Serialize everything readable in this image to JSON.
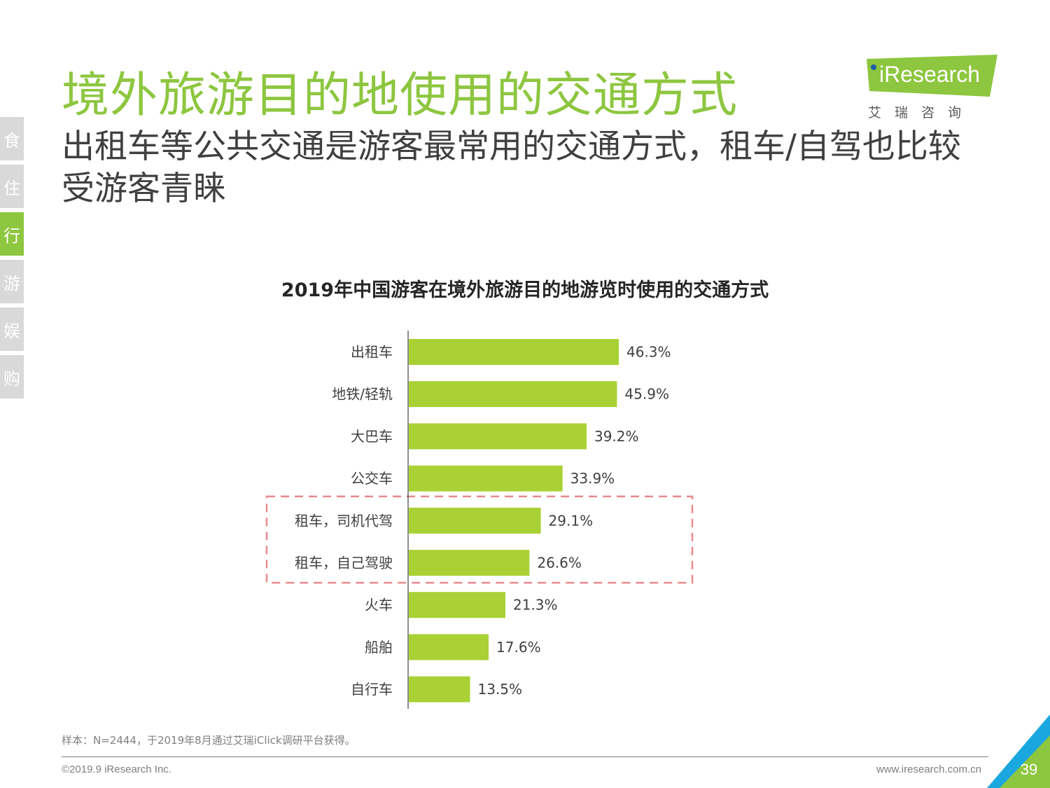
{
  "header": {
    "title": "境外旅游目的地使用的交通方式",
    "subtitle": "出租车等公共交通是游客最常用的交通方式，租车/自驾也比较受游客青睐"
  },
  "logo": {
    "text": "iResearch",
    "subtext": "艾瑞咨询"
  },
  "side_nav": [
    "食",
    "住",
    "行",
    "游",
    "娱",
    "购"
  ],
  "side_nav_active": "行",
  "chart_data": {
    "type": "bar",
    "orientation": "horizontal",
    "title": "2019年中国游客在境外旅游目的地游览时使用的交通方式",
    "categories": [
      "出租车",
      "地铁/轻轨",
      "大巴车",
      "公交车",
      "租车，司机代驾",
      "租车，自己驾驶",
      "火车",
      "船舶",
      "自行车"
    ],
    "values": [
      46.3,
      45.9,
      39.2,
      33.9,
      29.1,
      26.6,
      21.3,
      17.6,
      13.5
    ],
    "labels": [
      "46.3%",
      "45.9%",
      "39.2%",
      "33.9%",
      "29.1%",
      "26.6%",
      "21.3%",
      "17.6%",
      "13.5%"
    ],
    "unit": "%",
    "bar_color": "#a9d135",
    "highlight_categories": [
      "租车，司机代驾",
      "租车，自己驾驶"
    ],
    "highlight_color": "#e8898e",
    "grid": false,
    "legend": "none"
  },
  "footer": {
    "note": "样本：N=2444，于2019年8月通过艾瑞iClick调研平台获得。",
    "copyright": "©2019.9 iResearch Inc.",
    "website": "www.iresearch.com.cn",
    "page": "39"
  },
  "colors": {
    "brand_green": "#8dc63f",
    "brand_blue": "#1aa7e0",
    "text_dark": "#404040"
  }
}
